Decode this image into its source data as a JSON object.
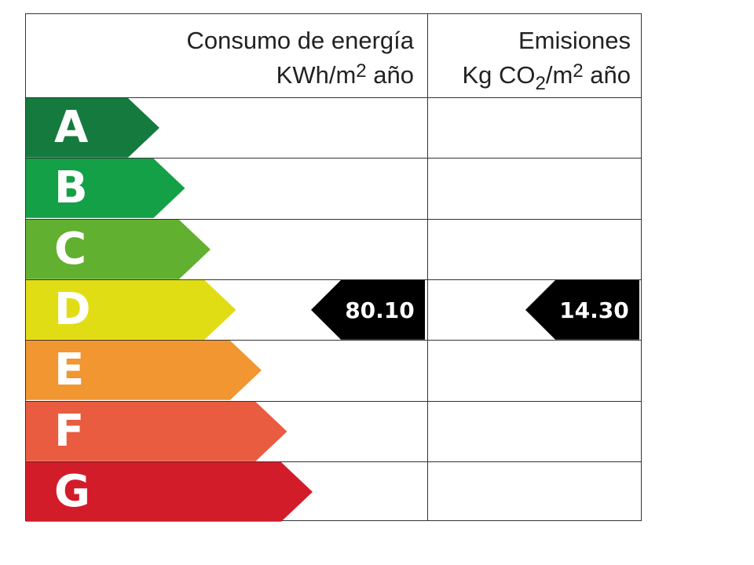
{
  "header": {
    "energy": {
      "title": "Consumo de energía",
      "unit_main": "KWh/m",
      "unit_sup": "2",
      "unit_rest": " año"
    },
    "emissions": {
      "title": "Emisiones",
      "unit_main": "Kg CO",
      "unit_sub": "2",
      "unit_mid": "/m",
      "unit_sup": "2",
      "unit_rest": " año"
    }
  },
  "ratings": [
    {
      "letter": "A",
      "color": "#157a3e"
    },
    {
      "letter": "B",
      "color": "#14a047"
    },
    {
      "letter": "C",
      "color": "#62b030"
    },
    {
      "letter": "D",
      "color": "#e1dd14"
    },
    {
      "letter": "E",
      "color": "#f19631"
    },
    {
      "letter": "F",
      "color": "#e95c40"
    },
    {
      "letter": "G",
      "color": "#d31c2a"
    }
  ],
  "current": {
    "rating": "D",
    "energy_value": "80.10",
    "emissions_value": "14.30",
    "tag_color": "#000000"
  }
}
